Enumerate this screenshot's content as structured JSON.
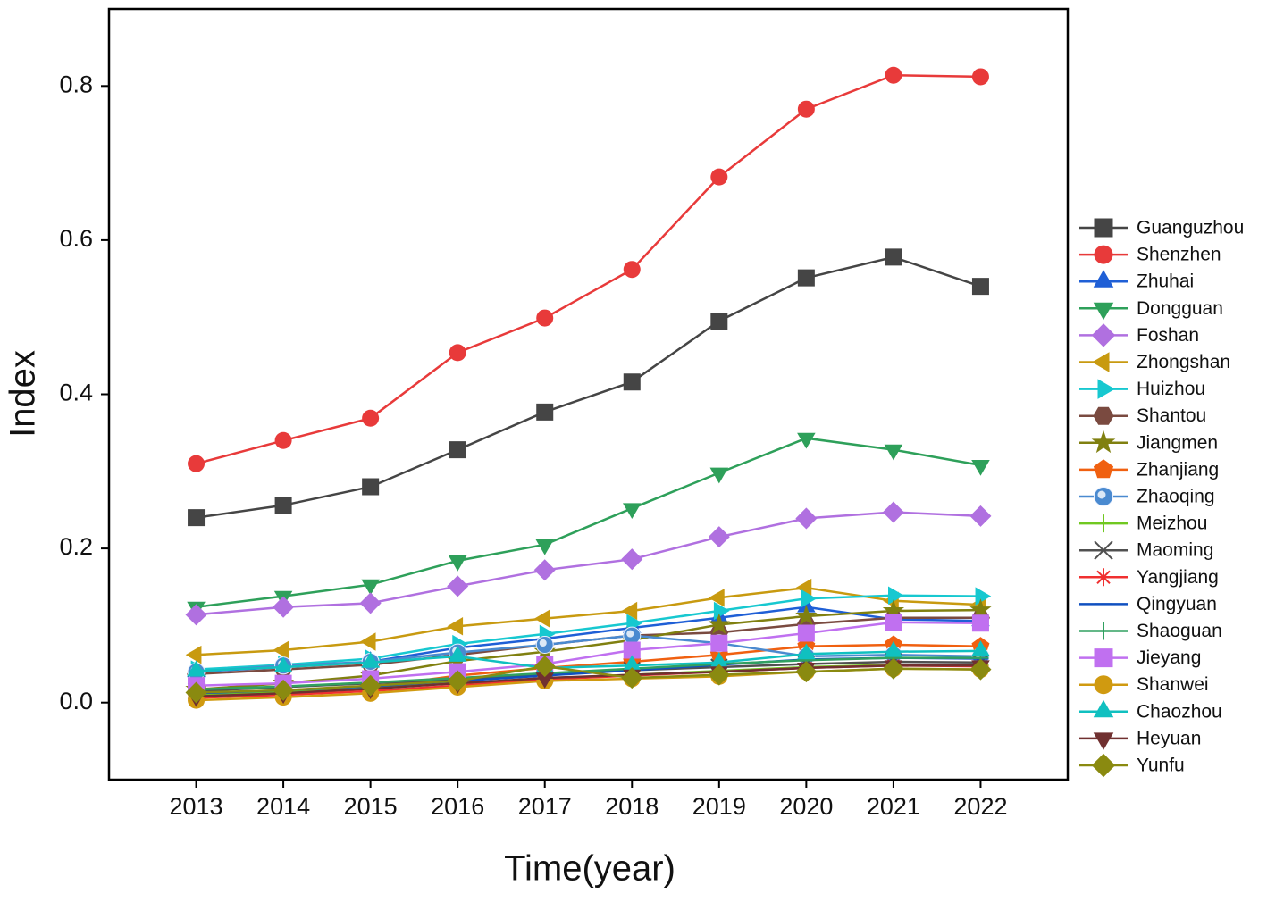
{
  "chart_data": {
    "type": "line",
    "x_label": "Time(year)",
    "y_label": "Index",
    "x": [
      2013,
      2014,
      2015,
      2016,
      2017,
      2018,
      2019,
      2020,
      2021,
      2022
    ],
    "xlim": [
      2012,
      2023
    ],
    "xticks": [
      2013,
      2014,
      2015,
      2016,
      2017,
      2018,
      2019,
      2020,
      2021,
      2022
    ],
    "ylim": [
      -0.1,
      0.9
    ],
    "yticks": [
      {
        "value": 0,
        "label": "0.0"
      },
      0.2,
      0.4,
      0.6,
      0.8
    ],
    "legend": "right",
    "series": [
      {
        "name": "Guanguzhou",
        "color": "#454545",
        "marker": "square",
        "values": [
          0.24,
          0.256,
          0.28,
          0.328,
          0.377,
          0.416,
          0.495,
          0.551,
          0.578,
          0.54
        ]
      },
      {
        "name": "Shenzhen",
        "color": "#e83a3a",
        "marker": "circle",
        "values": [
          0.31,
          0.34,
          0.369,
          0.454,
          0.499,
          0.562,
          0.682,
          0.77,
          0.814,
          0.812
        ]
      },
      {
        "name": "Zhuhai",
        "color": "#1f5fd6",
        "marker": "triangle-up",
        "values": [
          0.04,
          0.046,
          0.053,
          0.071,
          0.083,
          0.097,
          0.11,
          0.124,
          0.108,
          0.106
        ]
      },
      {
        "name": "Dongguan",
        "color": "#2ea05a",
        "marker": "triangle-down",
        "values": [
          0.124,
          0.138,
          0.153,
          0.184,
          0.205,
          0.252,
          0.298,
          0.343,
          0.328,
          0.308
        ]
      },
      {
        "name": "Foshan",
        "color": "#b070e0",
        "marker": "diamond",
        "values": [
          0.114,
          0.124,
          0.129,
          0.151,
          0.172,
          0.186,
          0.215,
          0.239,
          0.247,
          0.242
        ]
      },
      {
        "name": "Zhongshan",
        "color": "#c89a10",
        "marker": "triangle-left",
        "values": [
          0.062,
          0.068,
          0.079,
          0.099,
          0.109,
          0.119,
          0.136,
          0.149,
          0.132,
          0.127
        ]
      },
      {
        "name": "Huizhou",
        "color": "#17c8d0",
        "marker": "triangle-right",
        "values": [
          0.043,
          0.049,
          0.057,
          0.076,
          0.089,
          0.103,
          0.119,
          0.135,
          0.139,
          0.138
        ]
      },
      {
        "name": "Shantou",
        "color": "#7a4a40",
        "marker": "hexagon",
        "values": [
          0.037,
          0.043,
          0.049,
          0.062,
          0.075,
          0.087,
          0.091,
          0.102,
          0.11,
          0.11
        ]
      },
      {
        "name": "Jiangmen",
        "color": "#808010",
        "marker": "star",
        "values": [
          0.017,
          0.025,
          0.035,
          0.054,
          0.066,
          0.081,
          0.101,
          0.112,
          0.119,
          0.12
        ]
      },
      {
        "name": "Zhanjiang",
        "color": "#f06010",
        "marker": "pentagon",
        "values": [
          0.008,
          0.013,
          0.02,
          0.035,
          0.045,
          0.053,
          0.062,
          0.073,
          0.075,
          0.073
        ]
      },
      {
        "name": "Zhaoqing",
        "color": "#4a8ad0",
        "marker": "sphere",
        "values": [
          0.04,
          0.048,
          0.053,
          0.065,
          0.075,
          0.087,
          0.077,
          0.06,
          0.062,
          0.06
        ]
      },
      {
        "name": "Meizhou",
        "color": "#70c820",
        "marker": "plus",
        "values": [
          0.01,
          0.014,
          0.019,
          0.025,
          0.031,
          0.036,
          0.041,
          0.046,
          0.049,
          0.049
        ]
      },
      {
        "name": "Maoming",
        "color": "#505050",
        "marker": "x",
        "values": [
          0.015,
          0.02,
          0.025,
          0.03,
          0.036,
          0.042,
          0.046,
          0.05,
          0.053,
          0.052
        ]
      },
      {
        "name": "Yangjiang",
        "color": "#f03030",
        "marker": "asterisk",
        "values": [
          0.006,
          0.01,
          0.015,
          0.022,
          0.03,
          0.035,
          0.04,
          0.045,
          0.048,
          0.047
        ]
      },
      {
        "name": "Qingyuan",
        "color": "#1050c0",
        "marker": "dash",
        "values": [
          0.012,
          0.016,
          0.021,
          0.028,
          0.035,
          0.042,
          0.049,
          0.056,
          0.058,
          0.057
        ]
      },
      {
        "name": "Shaoguan",
        "color": "#30a060",
        "marker": "plus",
        "values": [
          0.017,
          0.021,
          0.026,
          0.032,
          0.038,
          0.044,
          0.05,
          0.055,
          0.058,
          0.058
        ]
      },
      {
        "name": "Jieyang",
        "color": "#c070f0",
        "marker": "square",
        "values": [
          0.022,
          0.025,
          0.031,
          0.04,
          0.05,
          0.068,
          0.077,
          0.09,
          0.104,
          0.103
        ]
      },
      {
        "name": "Shanwei",
        "color": "#d09a10",
        "marker": "circle",
        "values": [
          0.003,
          0.007,
          0.012,
          0.02,
          0.028,
          0.031,
          0.034,
          0.04,
          0.044,
          0.043
        ]
      },
      {
        "name": "Chaozhou",
        "color": "#10c0c0",
        "marker": "triangle-up",
        "values": [
          0.041,
          0.046,
          0.052,
          0.06,
          0.045,
          0.048,
          0.052,
          0.063,
          0.066,
          0.067
        ]
      },
      {
        "name": "Heyuan",
        "color": "#703030",
        "marker": "triangle-down",
        "values": [
          0.008,
          0.012,
          0.018,
          0.025,
          0.032,
          0.036,
          0.04,
          0.045,
          0.048,
          0.048
        ]
      },
      {
        "name": "Yunfu",
        "color": "#8a8a10",
        "marker": "diamond",
        "values": [
          0.013,
          0.016,
          0.022,
          0.028,
          0.047,
          0.032,
          0.036,
          0.04,
          0.044,
          0.043
        ]
      }
    ]
  }
}
